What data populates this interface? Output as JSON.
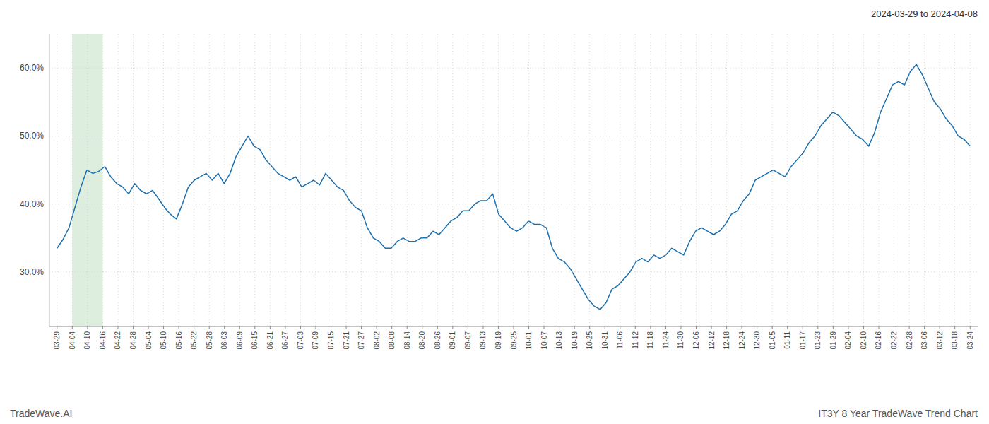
{
  "chart_data": {
    "type": "line",
    "title": "IT3Y 8 Year TradeWave Trend Chart",
    "subtitle": "2024-03-29 to 2024-04-08",
    "annotations": [
      "TradeWave.AI"
    ],
    "color": "#1a6faf",
    "grid": true,
    "highlight": {
      "x": [
        1,
        3
      ],
      "color": "#d6ead6"
    },
    "xlim": [
      -0.5,
      60.5
    ],
    "xticks": [
      {
        "value": 0,
        "label": "03-29"
      },
      {
        "value": 1,
        "label": "04-04"
      },
      {
        "value": 2,
        "label": "04-10"
      },
      {
        "value": 3,
        "label": "04-16"
      },
      {
        "value": 4,
        "label": "04-22"
      },
      {
        "value": 5,
        "label": "04-28"
      },
      {
        "value": 6,
        "label": "05-04"
      },
      {
        "value": 7,
        "label": "05-10"
      },
      {
        "value": 8,
        "label": "05-16"
      },
      {
        "value": 9,
        "label": "05-22"
      },
      {
        "value": 10,
        "label": "05-28"
      },
      {
        "value": 11,
        "label": "06-03"
      },
      {
        "value": 12,
        "label": "06-09"
      },
      {
        "value": 13,
        "label": "06-15"
      },
      {
        "value": 14,
        "label": "06-21"
      },
      {
        "value": 15,
        "label": "06-27"
      },
      {
        "value": 16,
        "label": "07-03"
      },
      {
        "value": 17,
        "label": "07-09"
      },
      {
        "value": 18,
        "label": "07-15"
      },
      {
        "value": 19,
        "label": "07-21"
      },
      {
        "value": 20,
        "label": "07-27"
      },
      {
        "value": 21,
        "label": "08-02"
      },
      {
        "value": 22,
        "label": "08-08"
      },
      {
        "value": 23,
        "label": "08-14"
      },
      {
        "value": 24,
        "label": "08-20"
      },
      {
        "value": 25,
        "label": "08-26"
      },
      {
        "value": 26,
        "label": "09-01"
      },
      {
        "value": 27,
        "label": "09-07"
      },
      {
        "value": 28,
        "label": "09-13"
      },
      {
        "value": 29,
        "label": "09-19"
      },
      {
        "value": 30,
        "label": "09-25"
      },
      {
        "value": 31,
        "label": "10-01"
      },
      {
        "value": 32,
        "label": "10-07"
      },
      {
        "value": 33,
        "label": "10-13"
      },
      {
        "value": 34,
        "label": "10-19"
      },
      {
        "value": 35,
        "label": "10-25"
      },
      {
        "value": 36,
        "label": "10-31"
      },
      {
        "value": 37,
        "label": "11-06"
      },
      {
        "value": 38,
        "label": "11-12"
      },
      {
        "value": 39,
        "label": "11-18"
      },
      {
        "value": 40,
        "label": "11-24"
      },
      {
        "value": 41,
        "label": "11-30"
      },
      {
        "value": 42,
        "label": "12-06"
      },
      {
        "value": 43,
        "label": "12-12"
      },
      {
        "value": 44,
        "label": "12-18"
      },
      {
        "value": 45,
        "label": "12-24"
      },
      {
        "value": 46,
        "label": "12-30"
      },
      {
        "value": 47,
        "label": "01-05"
      },
      {
        "value": 48,
        "label": "01-11"
      },
      {
        "value": 49,
        "label": "01-17"
      },
      {
        "value": 50,
        "label": "01-23"
      },
      {
        "value": 51,
        "label": "01-29"
      },
      {
        "value": 52,
        "label": "02-04"
      },
      {
        "value": 53,
        "label": "02-10"
      },
      {
        "value": 54,
        "label": "02-16"
      },
      {
        "value": 55,
        "label": "02-22"
      },
      {
        "value": 56,
        "label": "02-28"
      },
      {
        "value": 57,
        "label": "03-06"
      },
      {
        "value": 58,
        "label": "03-12"
      },
      {
        "value": 59,
        "label": "03-18"
      },
      {
        "value": 60,
        "label": "03-24"
      }
    ],
    "ylim": [
      22,
      65
    ],
    "yticks": [
      {
        "value": 30.0,
        "label": "30.0%"
      },
      {
        "value": 40.0,
        "label": "40.0%"
      },
      {
        "value": 50.0,
        "label": "50.0%"
      },
      {
        "value": 60.0,
        "label": "60.0%"
      }
    ],
    "values": [
      33.5,
      34.8,
      36.5,
      39.5,
      42.5,
      45.0,
      44.5,
      44.8,
      45.5,
      44.0,
      43.0,
      42.5,
      41.5,
      43.0,
      42.0,
      41.5,
      42.0,
      40.8,
      39.5,
      38.5,
      37.8,
      40.0,
      42.5,
      43.5,
      44.0,
      44.5,
      43.5,
      44.5,
      43.0,
      44.5,
      47.0,
      48.5,
      50.0,
      48.5,
      48.0,
      46.5,
      45.5,
      44.5,
      44.0,
      43.5,
      44.0,
      42.5,
      43.0,
      43.5,
      42.8,
      44.5,
      43.5,
      42.5,
      42.0,
      40.5,
      39.5,
      39.0,
      36.5,
      35.0,
      34.5,
      33.5,
      33.5,
      34.5,
      35.0,
      34.5,
      34.5,
      35.0,
      35.0,
      36.0,
      35.5,
      36.5,
      37.5,
      38.0,
      39.0,
      39.0,
      40.0,
      40.5,
      40.5,
      41.5,
      38.5,
      37.5,
      36.5,
      36.0,
      36.5,
      37.5,
      37.0,
      37.0,
      36.5,
      33.5,
      32.0,
      31.5,
      30.5,
      29.0,
      27.5,
      26.0,
      25.0,
      24.5,
      25.5,
      27.5,
      28.0,
      29.0,
      30.0,
      31.5,
      32.0,
      31.5,
      32.5,
      32.0,
      32.5,
      33.5,
      33.0,
      32.5,
      34.5,
      36.0,
      36.5,
      36.0,
      35.5,
      36.0,
      37.0,
      38.5,
      39.0,
      40.5,
      41.5,
      43.5,
      44.0,
      44.5,
      45.0,
      44.5,
      44.0,
      45.5,
      46.5,
      47.5,
      49.0,
      50.0,
      51.5,
      52.5,
      53.5,
      53.0,
      52.0,
      51.0,
      50.0,
      49.5,
      48.5,
      50.5,
      53.5,
      55.5,
      57.5,
      58.0,
      57.5,
      59.5,
      60.5,
      59.0,
      57.0,
      55.0,
      54.0,
      52.5,
      51.5,
      50.0,
      49.5,
      48.5
    ]
  }
}
